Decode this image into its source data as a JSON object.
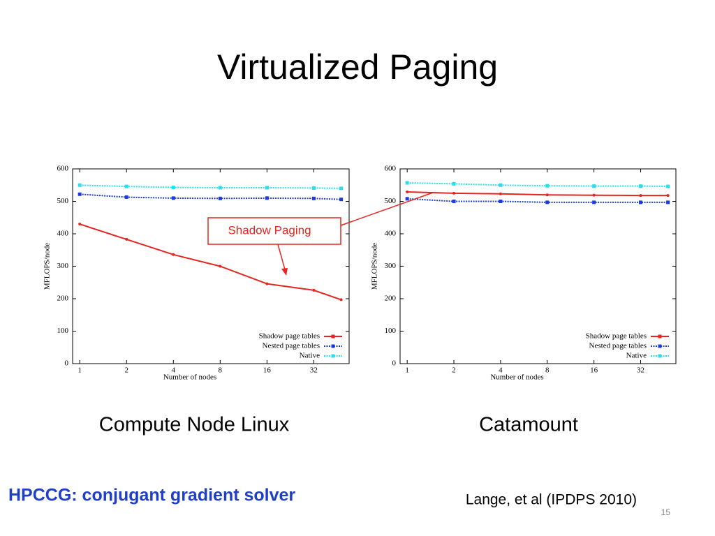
{
  "slide": {
    "title": "Virtualized Paging",
    "captions": [
      "Compute Node Linux",
      "Catamount"
    ],
    "annotation": "Shadow Paging",
    "subtitle": "HPCCG: conjugant gradient solver",
    "citation": "Lange, et al (IPDPS 2010)",
    "page_number": "15"
  },
  "chart_data": [
    {
      "type": "line",
      "x": [
        1,
        2,
        4,
        8,
        16,
        32,
        48
      ],
      "xscale": "log",
      "xlim": [
        0.9,
        54
      ],
      "xticks": [
        1,
        2,
        4,
        8,
        16,
        32
      ],
      "ylim": [
        0,
        600
      ],
      "yticks": [
        0,
        100,
        200,
        300,
        400,
        500,
        600
      ],
      "xlabel": "Number of nodes",
      "ylabel": "MFLOPS/node",
      "legend": "lower right",
      "series": [
        {
          "name": "Shadow page tables",
          "color": "#e3261f",
          "style": "solid",
          "values": [
            430,
            383,
            336,
            300,
            246,
            226,
            197
          ]
        },
        {
          "name": "Nested page tables",
          "color": "#1c3bd9",
          "style": "dotted",
          "values": [
            522,
            513,
            510,
            509,
            510,
            509,
            506
          ]
        },
        {
          "name": "Native",
          "color": "#24e0ec",
          "style": "dotted",
          "values": [
            550,
            546,
            543,
            542,
            542,
            541,
            540
          ]
        }
      ]
    },
    {
      "type": "line",
      "x": [
        1,
        2,
        4,
        8,
        16,
        32,
        48
      ],
      "xscale": "log",
      "xlim": [
        0.9,
        54
      ],
      "xticks": [
        1,
        2,
        4,
        8,
        16,
        32
      ],
      "ylim": [
        0,
        600
      ],
      "yticks": [
        0,
        100,
        200,
        300,
        400,
        500,
        600
      ],
      "xlabel": "Number of nodes",
      "ylabel": "MFLOPS/node",
      "legend": "lower right",
      "series": [
        {
          "name": "Shadow page tables",
          "color": "#e3261f",
          "style": "solid",
          "values": [
            529,
            525,
            523,
            520,
            519,
            518,
            518
          ]
        },
        {
          "name": "Nested page tables",
          "color": "#1c3bd9",
          "style": "dotted",
          "values": [
            508,
            500,
            500,
            497,
            497,
            497,
            497
          ]
        },
        {
          "name": "Native",
          "color": "#24e0ec",
          "style": "dotted",
          "values": [
            557,
            554,
            550,
            548,
            547,
            547,
            546
          ]
        }
      ]
    }
  ]
}
